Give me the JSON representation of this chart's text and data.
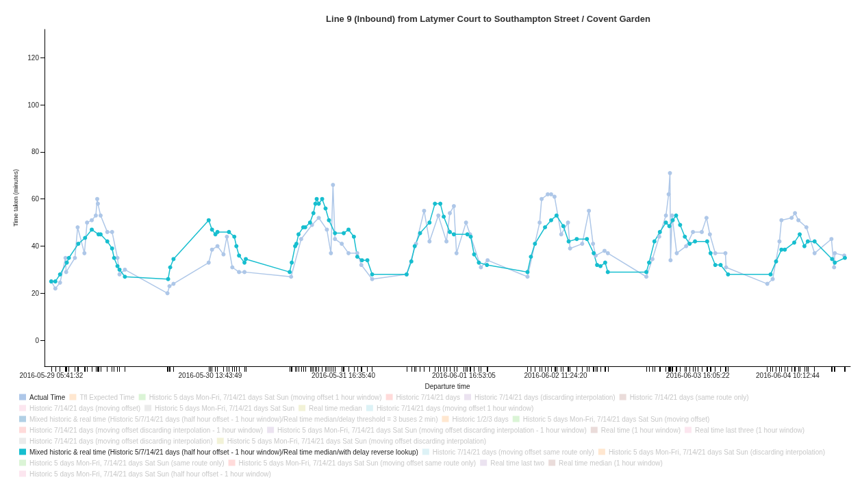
{
  "chart_data": {
    "type": "line",
    "title": "Line 9 (Inbound) from Latymer Court to Southampton Street / Covent Garden",
    "xlabel": "Departure time",
    "ylabel": "Time taken (minutes)",
    "xlim": [
      "2016-05-29T04:19",
      "2016-06-04T22:51"
    ],
    "xticks": [
      {
        "value": "2016-05-29T05:41:32",
        "label": "2016-05-29 05:41:32"
      },
      {
        "value": "2016-05-30T13:43:49",
        "label": "2016-05-30 13:43:49"
      },
      {
        "value": "2016-05-31T16:35:40",
        "label": "2016-05-31 16:35:40"
      },
      {
        "value": "2016-06-01T16:53:05",
        "label": "2016-06-01 16:53:05"
      },
      {
        "value": "2016-06-02T11:24:20",
        "label": "2016-06-02 11:24:20"
      },
      {
        "value": "2016-06-03T16:05:22",
        "label": "2016-06-03 16:05:22"
      },
      {
        "value": "2016-06-04T10:12:44",
        "label": "2016-06-04 10:12:44"
      }
    ],
    "ylim": [
      -11,
      132
    ],
    "yticks": [
      0,
      20,
      40,
      60,
      80,
      100,
      120
    ],
    "grid": false,
    "marker": "circle",
    "legend": "bottom",
    "series": [
      {
        "name": "Actual Time",
        "color": "#aec7e8",
        "x": [
          "2016-05-29T05:41",
          "2016-05-29T06:30",
          "2016-05-29T07:27",
          "2016-05-29T08:33",
          "2016-05-29T08:41",
          "2016-05-29T10:27",
          "2016-05-29T11:00",
          "2016-05-29T12:22",
          "2016-05-29T12:54",
          "2016-05-29T13:51",
          "2016-05-29T14:40",
          "2016-05-29T14:57",
          "2016-05-29T15:05",
          "2016-05-29T15:38",
          "2016-05-29T16:59",
          "2016-05-29T17:57",
          "2016-05-29T19:02",
          "2016-05-29T19:27",
          "2016-05-29T20:32",
          "2016-05-30T05:07",
          "2016-05-30T05:31",
          "2016-05-30T06:20",
          "2016-05-30T13:26",
          "2016-05-30T14:06",
          "2016-05-30T15:12",
          "2016-05-30T16:25",
          "2016-05-30T17:06",
          "2016-05-30T18:12",
          "2016-05-30T19:33",
          "2016-05-30T20:39",
          "2016-05-31T06:03",
          "2016-05-31T08:05",
          "2016-05-31T10:16",
          "2016-05-31T11:38",
          "2016-05-31T13:16",
          "2016-05-31T14:05",
          "2016-05-31T14:30",
          "2016-05-31T14:54",
          "2016-05-31T16:16",
          "2016-05-31T17:38",
          "2016-05-31T19:24",
          "2016-05-31T20:13",
          "2016-05-31T22:24",
          "2016-06-01T05:21",
          "2016-06-01T07:15",
          "2016-06-01T08:53",
          "2016-06-01T09:58",
          "2016-06-01T11:45",
          "2016-06-01T13:23",
          "2016-06-01T14:04",
          "2016-06-01T14:53",
          "2016-06-01T15:25",
          "2016-06-01T17:20",
          "2016-06-01T18:09",
          "2016-06-01T20:20",
          "2016-06-01T21:41",
          "2016-06-02T05:44",
          "2016-06-02T08:11",
          "2016-06-02T08:35",
          "2016-06-02T09:49",
          "2016-06-02T10:30",
          "2016-06-02T11:11",
          "2016-06-02T12:32",
          "2016-06-02T13:54",
          "2016-06-02T14:19",
          "2016-06-02T16:46",
          "2016-06-02T18:07",
          "2016-06-02T18:57",
          "2016-06-02T19:29",
          "2016-06-02T21:16",
          "2016-06-02T21:56",
          "2016-06-03T05:42",
          "2016-06-03T06:56",
          "2016-06-03T08:18",
          "2016-06-03T09:39",
          "2016-06-03T10:12",
          "2016-06-03T10:28",
          "2016-06-03T10:35",
          "2016-06-03T10:53",
          "2016-06-03T11:50",
          "2016-06-03T13:44",
          "2016-06-03T15:06",
          "2016-06-03T16:53",
          "2016-06-03T17:50",
          "2016-06-03T18:31",
          "2016-06-03T19:36",
          "2016-06-03T21:39",
          "2016-06-03T21:47",
          "2016-06-04T06:06",
          "2016-06-04T07:11",
          "2016-06-04T08:33",
          "2016-06-04T08:57",
          "2016-06-04T11:00",
          "2016-06-04T11:41",
          "2016-06-04T12:22",
          "2016-06-04T13:59",
          "2016-06-04T15:38",
          "2016-06-04T19:02",
          "2016-06-04T19:34",
          "2016-06-04T19:43",
          "2016-06-04T21:37"
        ],
        "values": [
          25,
          22,
          24.5,
          35,
          29,
          35,
          48,
          37,
          50,
          51,
          53,
          60,
          58,
          53,
          46,
          46,
          35,
          28,
          30,
          20,
          23,
          24,
          33,
          38.5,
          40,
          36.5,
          44,
          31,
          29,
          29,
          27,
          43,
          49,
          52,
          47,
          37,
          66,
          43,
          41,
          37,
          37,
          32,
          26,
          28,
          41,
          55,
          42,
          53,
          42,
          54,
          57,
          37,
          50,
          45,
          31,
          34,
          27,
          50,
          60,
          62,
          62,
          61,
          45,
          50,
          39,
          41,
          55,
          41,
          36,
          38,
          37,
          27,
          34.5,
          44,
          53,
          62,
          71,
          34,
          53,
          37,
          40,
          46,
          46,
          52,
          45,
          37,
          37,
          31,
          24,
          26,
          42,
          51,
          52,
          54,
          51,
          48,
          37,
          43,
          31,
          37,
          36
        ]
      },
      {
        "name": "Tfl Expected Time",
        "color": "#ffbb78"
      },
      {
        "name": "Historic 5 days Mon-Fri, 7/14/21 days Sat Sun (moving offset 1 hour window)",
        "color": "#98df8a"
      },
      {
        "name": "Historic 7/14/21 days",
        "color": "#ff9896"
      },
      {
        "name": "Historic 7/14/21 days (discarding interpolation)",
        "color": "#c5b0d5"
      },
      {
        "name": "Historic 7/14/21 days (same route only)",
        "color": "#c49c94"
      },
      {
        "name": "Historic 7/14/21 days (moving offset)",
        "color": "#f7b6d2"
      },
      {
        "name": "Historic 5 days Mon-Fri, 7/14/21 days Sat Sun",
        "color": "#c7c7c7"
      },
      {
        "name": "Real time median",
        "color": "#dbdb8d"
      },
      {
        "name": "Historic 7/14/21 days (moving offset 1 hour window)",
        "color": "#9edae5"
      },
      {
        "name": "Mixed historic & real time (Historic 5/7/14/21 days (half hour offset - 1 hour window)/Real time median/delay threshold = 3 buses 2 min)",
        "color": "#1f77b4"
      },
      {
        "name": "Historic 1/2/3 days",
        "color": "#ffbb78"
      },
      {
        "name": "Historic 5 days Mon-Fri, 7/14/21 days Sat Sun (moving offset)",
        "color": "#98df8a"
      },
      {
        "name": "Historic 7/14/21 days (moving offset discarding interpolation - 1 hour window)",
        "color": "#ff9896"
      },
      {
        "name": "Historic 5 days Mon-Fri, 7/14/21 days Sat Sun (moving offset discarding interpolation - 1 hour window)",
        "color": "#c5b0d5"
      },
      {
        "name": "Real time (1 hour window)",
        "color": "#c49c94"
      },
      {
        "name": "Real time last three (1 hour window)",
        "color": "#f7b6d2"
      },
      {
        "name": "Historic 7/14/21 days (moving offset discarding interpolation)",
        "color": "#c7c7c7"
      },
      {
        "name": "Historic 5 days Mon-Fri, 7/14/21 days Sat Sun (moving offset discarding interpolation)",
        "color": "#dbdb8d"
      },
      {
        "name": "Mixed historic & real time (Historic 5/7/14/21 days (half hour offset - 1 hour window)/Real time median/with delay reverse lookup)",
        "color": "#17becf",
        "x": [
          "2016-05-29T05:41",
          "2016-05-29T06:30",
          "2016-05-29T07:27",
          "2016-05-29T08:49",
          "2016-05-29T09:14",
          "2016-05-29T11:08",
          "2016-05-29T12:30",
          "2016-05-29T13:51",
          "2016-05-29T15:13",
          "2016-05-29T15:38",
          "2016-05-29T16:59",
          "2016-05-29T17:57",
          "2016-05-29T18:21",
          "2016-05-29T19:02",
          "2016-05-29T19:27",
          "2016-05-29T20:32",
          "2016-05-30T05:15",
          "2016-05-30T05:40",
          "2016-05-30T06:20",
          "2016-05-30T13:26",
          "2016-05-30T14:06",
          "2016-05-30T14:47",
          "2016-05-30T15:12",
          "2016-05-30T17:31",
          "2016-05-30T18:36",
          "2016-05-30T19:01",
          "2016-05-30T19:33",
          "2016-05-30T20:39",
          "2016-05-30T20:55",
          "2016-05-31T05:46",
          "2016-05-31T06:11",
          "2016-05-31T06:52",
          "2016-05-31T07:08",
          "2016-05-31T07:33",
          "2016-05-31T08:30",
          "2016-05-31T08:54",
          "2016-05-31T09:52",
          "2016-05-31T10:33",
          "2016-05-31T10:57",
          "2016-05-31T11:13",
          "2016-05-31T11:38",
          "2016-05-31T12:19",
          "2016-05-31T13:00",
          "2016-05-31T13:41",
          "2016-05-31T14:54",
          "2016-05-31T16:40",
          "2016-05-31T17:38",
          "2016-05-31T18:43",
          "2016-05-31T19:24",
          "2016-05-31T20:21",
          "2016-05-31T21:26",
          "2016-05-31T22:24",
          "2016-06-01T05:21",
          "2016-06-01T06:18",
          "2016-06-01T06:59",
          "2016-06-01T08:04",
          "2016-06-01T09:58",
          "2016-06-01T11:04",
          "2016-06-01T12:09",
          "2016-06-01T12:50",
          "2016-06-01T14:04",
          "2016-06-01T14:53",
          "2016-06-01T17:36",
          "2016-06-01T18:17",
          "2016-06-01T18:58",
          "2016-06-01T19:55",
          "2016-06-01T21:33",
          "2016-06-02T05:44",
          "2016-06-02T06:25",
          "2016-06-02T07:14",
          "2016-06-02T09:16",
          "2016-06-02T10:30",
          "2016-06-02T11:35",
          "2016-06-02T12:57",
          "2016-06-02T14:02",
          "2016-06-02T15:40",
          "2016-06-02T17:43",
          "2016-06-02T19:05",
          "2016-06-02T19:46",
          "2016-06-02T20:27",
          "2016-06-02T21:24",
          "2016-06-02T21:56",
          "2016-06-03T05:42",
          "2016-06-03T06:15",
          "2016-06-03T07:20",
          "2016-06-03T08:26",
          "2016-06-03T09:39",
          "2016-06-03T10:20",
          "2016-06-03T11:01",
          "2016-06-03T11:42",
          "2016-06-03T12:31",
          "2016-06-03T13:28",
          "2016-06-03T14:26",
          "2016-06-03T15:31",
          "2016-06-03T17:58",
          "2016-06-03T18:39",
          "2016-06-03T19:36",
          "2016-06-03T20:41",
          "2016-06-03T22:11",
          "2016-06-04T06:46",
          "2016-06-04T07:52",
          "2016-06-04T08:57",
          "2016-06-04T09:38",
          "2016-06-04T11:32",
          "2016-06-04T12:38",
          "2016-06-04T13:35",
          "2016-06-04T14:16",
          "2016-06-04T15:38",
          "2016-06-04T19:10",
          "2016-06-04T19:43",
          "2016-06-04T21:45"
        ],
        "values": [
          25,
          25,
          28,
          33,
          35,
          41,
          43.5,
          47,
          45,
          45,
          42,
          39,
          35,
          31.5,
          30,
          27,
          26,
          31,
          34.5,
          51,
          47,
          45,
          46,
          46,
          44,
          40,
          36,
          33,
          34.5,
          29,
          33,
          40,
          41,
          45,
          48,
          48,
          50,
          54,
          58,
          60,
          58,
          60,
          56,
          51,
          45.5,
          45.5,
          47,
          44,
          35.5,
          34,
          34,
          28,
          28,
          33.5,
          40,
          45.5,
          50,
          58,
          58,
          52.5,
          46,
          45,
          45,
          44,
          36.5,
          33,
          32,
          29,
          35.5,
          41,
          48,
          51,
          53,
          48.5,
          42,
          43,
          43,
          37,
          32,
          31.5,
          33,
          29,
          29,
          33,
          42,
          46,
          50,
          48.5,
          51,
          53,
          49,
          44,
          41,
          42,
          42,
          37,
          32,
          32,
          28,
          28,
          33.5,
          38.5,
          38.5,
          41.5,
          45,
          40,
          42,
          42,
          34.5,
          33,
          35
        ]
      },
      {
        "name": "Historic 7/14/21 days (moving offset same route only)",
        "color": "#9edae5"
      },
      {
        "name": "Historic 5 days Mon-Fri, 7/14/21 days Sat Sun (discarding interpolation)",
        "color": "#ffbb78"
      },
      {
        "name": "Historic 5 days Mon-Fri, 7/14/21 days Sat Sun (same route only)",
        "color": "#98df8a"
      },
      {
        "name": "Historic 5 days Mon-Fri, 7/14/21 days Sat Sun (moving offset same route only)",
        "color": "#ff9896"
      },
      {
        "name": "Real time last two",
        "color": "#c5b0d5"
      },
      {
        "name": "Real time median (1 hour window)",
        "color": "#c49c94"
      },
      {
        "name": "Historic 5 days Mon-Fri, 7/14/21 days Sat Sun (half hour offset - 1 hour window)",
        "color": "#f7b6d2"
      }
    ]
  }
}
